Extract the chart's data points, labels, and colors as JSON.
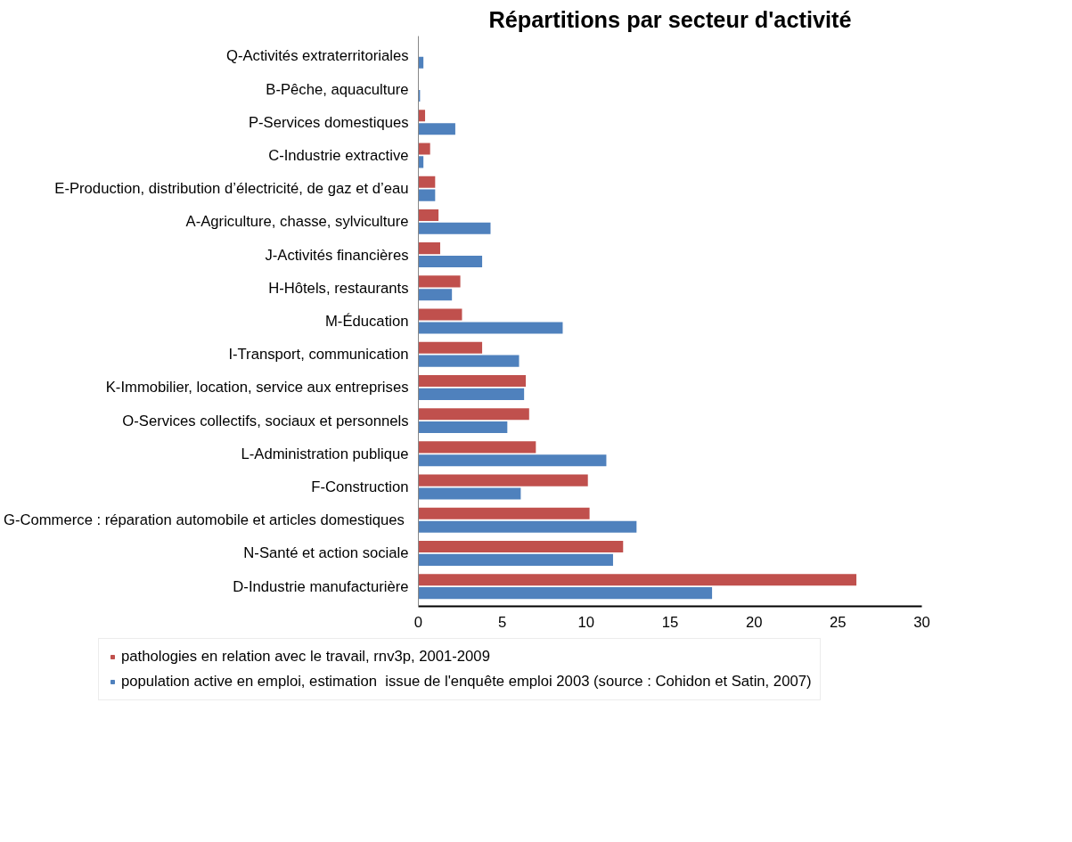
{
  "chart_data": {
    "type": "bar",
    "orientation": "horizontal",
    "title": "Répartitions par secteur d'activité",
    "categories": [
      "Q-Activités extraterritoriales",
      "B-Pêche, aquaculture",
      "P-Services domestiques",
      "C-Industrie extractive",
      "E-Production, distribution d’électricité, de gaz et d’eau",
      "A-Agriculture, chasse, sylviculture",
      "J-Activités financières",
      "H-Hôtels, restaurants",
      "M-Éducation",
      "I-Transport, communication",
      "K-Immobilier, location, service aux entreprises",
      "O-Services collectifs, sociaux et personnels",
      "L-Administration publique",
      "F-Construction",
      "G-Commerce : réparation automobile  et articles domestiques",
      "N-Santé et action sociale",
      "D-Industrie manufacturière"
    ],
    "series": [
      {
        "name": "pathologies en relation avec le travail, rnv3p, 2001-2009",
        "color": "#c0504d",
        "values": [
          0,
          0,
          0.4,
          0.7,
          1.0,
          1.2,
          1.3,
          2.5,
          2.6,
          3.8,
          6.4,
          6.6,
          7.0,
          10.1,
          10.2,
          12.2,
          26.1
        ]
      },
      {
        "name": "population active en emploi, estimation  issue de l'enquête emploi 2003 (source : Cohidon et Satin, 2007)",
        "color": "#4f81bd",
        "values": [
          0.3,
          0.1,
          2.2,
          0.3,
          1.0,
          4.3,
          3.8,
          2.0,
          8.6,
          6.0,
          6.3,
          5.3,
          11.2,
          6.1,
          13.0,
          11.6,
          17.5
        ]
      }
    ],
    "xlim": [
      0,
      30
    ],
    "xticks": [
      0,
      5,
      10,
      15,
      20,
      25,
      30
    ],
    "grid": false,
    "legend": "bottom"
  }
}
